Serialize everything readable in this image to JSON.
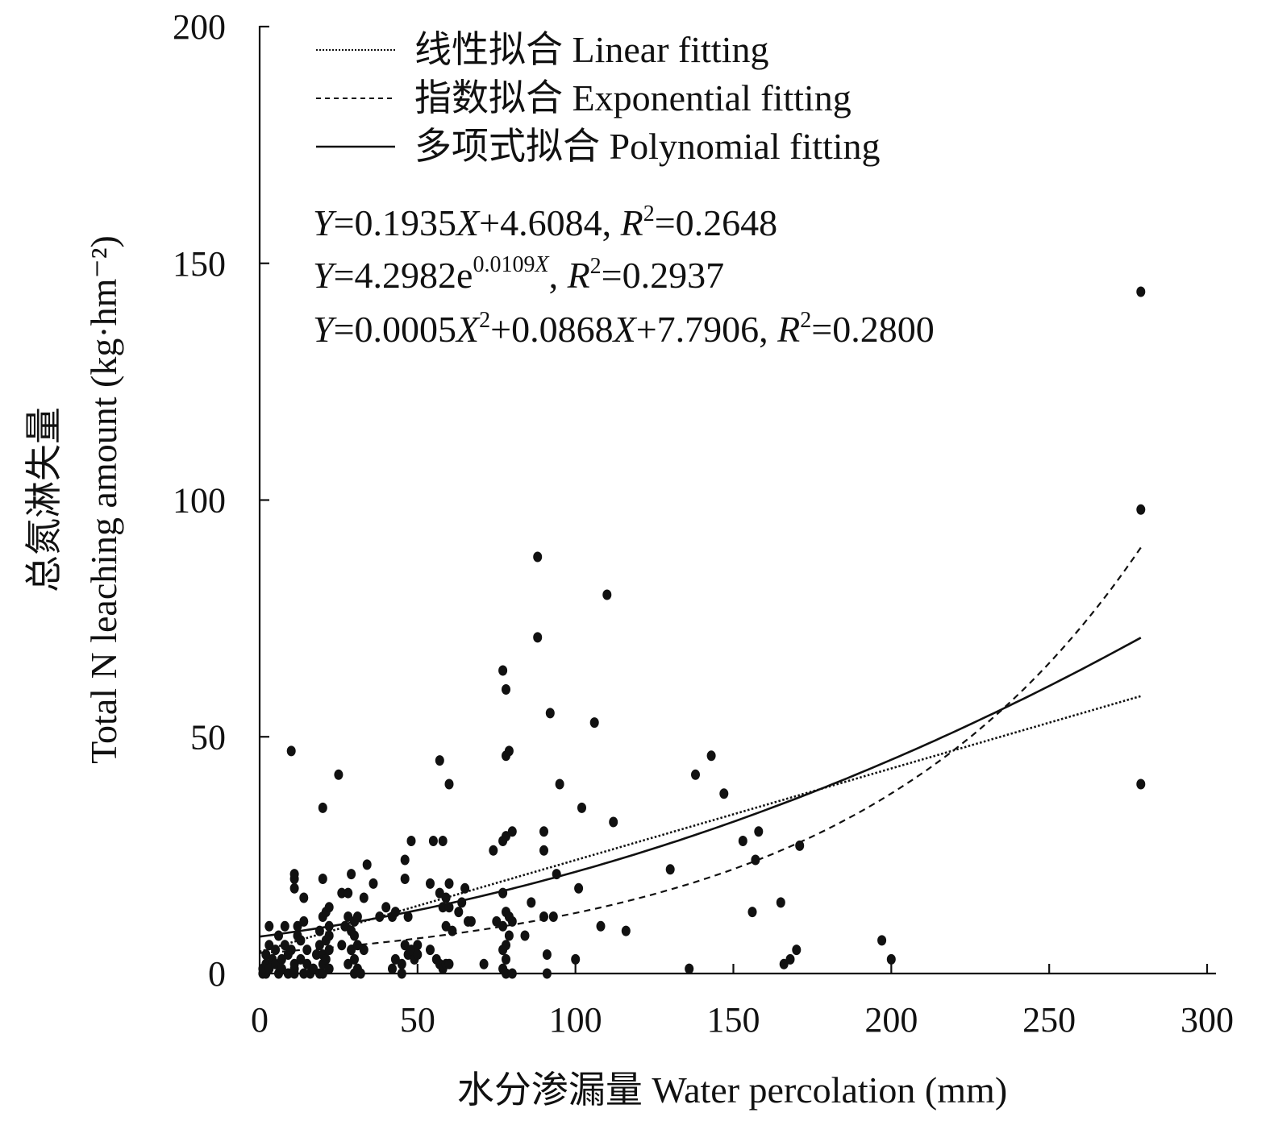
{
  "chart_data": {
    "type": "scatter",
    "xlabel": "水分渗漏量 Water percolation (mm)",
    "ylabel_line1": "总氮淋失量",
    "ylabel_line2": "Total N leaching amount (kg·hm⁻²)",
    "xlim": [
      0,
      300
    ],
    "ylim": [
      0,
      200
    ],
    "x_ticks": [
      "0",
      "50",
      "100",
      "150",
      "200",
      "250",
      "300"
    ],
    "y_ticks": [
      "0",
      "50",
      "100",
      "150",
      "200"
    ],
    "grid": false,
    "legend_position": "top-left",
    "legend": [
      {
        "label": "线性拟合 Linear fitting",
        "style": "dotted"
      },
      {
        "label": "指数拟合 Exponential fitting",
        "style": "dashed"
      },
      {
        "label": "多项式拟合 Polynomial fitting",
        "style": "solid"
      }
    ],
    "equations": {
      "linear": {
        "Y": "Y",
        "eq": "=0.1935",
        "X": "X",
        "rest": "+4.6084, ",
        "R": "R",
        "sup": "2",
        "r2": "=0.2648"
      },
      "exponential": {
        "Y": "Y",
        "eq": "=4.2982e",
        "exp": "0.0109",
        "X": "X",
        "comma": ", ",
        "R": "R",
        "sup": "2",
        "r2": "=0.2937"
      },
      "polynomial": {
        "Y": "Y",
        "eq": "=0.0005",
        "X": "X",
        "sup2": "2",
        "mid": "+0.0868",
        "X2": "X",
        "rest": "+7.7906, ",
        "R": "R",
        "sup": "2",
        "r2": "=0.2800"
      }
    },
    "fits": {
      "linear": {
        "slope": 0.1935,
        "intercept": 4.6084,
        "x_range": [
          0,
          279
        ]
      },
      "exponential": {
        "a": 4.2982,
        "b": 0.0109,
        "x_range": [
          0,
          279
        ]
      },
      "polynomial": {
        "a": 0.0005,
        "b": 0.0868,
        "c": 7.7906,
        "x_range": [
          0,
          279
        ]
      }
    },
    "series": [
      {
        "points": [
          [
            1,
            0
          ],
          [
            2,
            0
          ],
          [
            1,
            1
          ],
          [
            2,
            2
          ],
          [
            3,
            1
          ],
          [
            2,
            4
          ],
          [
            3,
            6
          ],
          [
            3,
            10
          ],
          [
            4,
            3
          ],
          [
            5,
            2
          ],
          [
            5,
            5
          ],
          [
            6,
            0
          ],
          [
            6,
            8
          ],
          [
            7,
            3
          ],
          [
            7,
            1
          ],
          [
            8,
            6
          ],
          [
            8,
            10
          ],
          [
            9,
            0
          ],
          [
            9,
            4
          ],
          [
            10,
            5
          ],
          [
            10,
            47
          ],
          [
            11,
            0
          ],
          [
            11,
            1
          ],
          [
            11,
            2
          ],
          [
            11,
            18
          ],
          [
            11,
            20
          ],
          [
            11,
            21
          ],
          [
            12,
            8
          ],
          [
            12,
            10
          ],
          [
            13,
            7
          ],
          [
            13,
            3
          ],
          [
            14,
            0
          ],
          [
            14,
            11
          ],
          [
            14,
            16
          ],
          [
            15,
            5
          ],
          [
            15,
            2
          ],
          [
            16,
            0
          ],
          [
            17,
            1
          ],
          [
            18,
            4
          ],
          [
            19,
            0
          ],
          [
            19,
            6
          ],
          [
            19,
            9
          ],
          [
            20,
            0
          ],
          [
            20,
            2
          ],
          [
            20,
            4
          ],
          [
            20,
            12
          ],
          [
            20,
            20
          ],
          [
            20,
            35
          ],
          [
            21,
            3
          ],
          [
            21,
            7
          ],
          [
            21,
            13
          ],
          [
            22,
            1
          ],
          [
            22,
            5
          ],
          [
            22,
            8
          ],
          [
            22,
            10
          ],
          [
            22,
            14
          ],
          [
            25,
            42
          ],
          [
            26,
            6
          ],
          [
            26,
            17
          ],
          [
            27,
            10
          ],
          [
            28,
            2
          ],
          [
            28,
            12
          ],
          [
            28,
            17
          ],
          [
            29,
            5
          ],
          [
            29,
            21
          ],
          [
            29,
            9
          ],
          [
            30,
            0
          ],
          [
            30,
            3
          ],
          [
            30,
            8
          ],
          [
            30,
            11
          ],
          [
            31,
            1
          ],
          [
            31,
            6
          ],
          [
            31,
            12
          ],
          [
            32,
            0
          ],
          [
            33,
            5
          ],
          [
            33,
            16
          ],
          [
            34,
            23
          ],
          [
            36,
            19
          ],
          [
            38,
            12
          ],
          [
            40,
            14
          ],
          [
            42,
            1
          ],
          [
            42,
            12
          ],
          [
            43,
            3
          ],
          [
            43,
            13
          ],
          [
            45,
            0
          ],
          [
            45,
            2
          ],
          [
            46,
            6
          ],
          [
            46,
            20
          ],
          [
            46,
            24
          ],
          [
            47,
            4
          ],
          [
            47,
            12
          ],
          [
            48,
            5
          ],
          [
            48,
            28
          ],
          [
            49,
            3
          ],
          [
            50,
            6
          ],
          [
            50,
            4
          ],
          [
            54,
            5
          ],
          [
            54,
            19
          ],
          [
            55,
            28
          ],
          [
            56,
            3
          ],
          [
            57,
            2
          ],
          [
            57,
            45
          ],
          [
            57,
            17
          ],
          [
            58,
            14
          ],
          [
            58,
            28
          ],
          [
            58,
            1
          ],
          [
            59,
            2
          ],
          [
            59,
            10
          ],
          [
            59,
            16
          ],
          [
            60,
            2
          ],
          [
            60,
            14
          ],
          [
            60,
            19
          ],
          [
            60,
            40
          ],
          [
            61,
            9
          ],
          [
            63,
            13
          ],
          [
            64,
            15
          ],
          [
            65,
            18
          ],
          [
            66,
            11
          ],
          [
            67,
            11
          ],
          [
            71,
            2
          ],
          [
            74,
            26
          ],
          [
            75,
            11
          ],
          [
            77,
            1
          ],
          [
            77,
            5
          ],
          [
            77,
            10
          ],
          [
            77,
            17
          ],
          [
            77,
            28
          ],
          [
            77,
            64
          ],
          [
            78,
            0
          ],
          [
            78,
            3
          ],
          [
            78,
            6
          ],
          [
            78,
            13
          ],
          [
            78,
            29
          ],
          [
            78,
            46
          ],
          [
            78,
            60
          ],
          [
            79,
            8
          ],
          [
            79,
            12
          ],
          [
            79,
            47
          ],
          [
            80,
            0
          ],
          [
            80,
            11
          ],
          [
            80,
            30
          ],
          [
            84,
            8
          ],
          [
            86,
            15
          ],
          [
            88,
            71
          ],
          [
            88,
            88
          ],
          [
            90,
            26
          ],
          [
            90,
            30
          ],
          [
            90,
            12
          ],
          [
            91,
            0
          ],
          [
            91,
            4
          ],
          [
            92,
            55
          ],
          [
            93,
            12
          ],
          [
            94,
            21
          ],
          [
            95,
            40
          ],
          [
            100,
            3
          ],
          [
            101,
            18
          ],
          [
            102,
            35
          ],
          [
            106,
            53
          ],
          [
            108,
            10
          ],
          [
            110,
            80
          ],
          [
            112,
            32
          ],
          [
            116,
            9
          ],
          [
            130,
            22
          ],
          [
            136,
            1
          ],
          [
            138,
            42
          ],
          [
            143,
            46
          ],
          [
            147,
            38
          ],
          [
            153,
            28
          ],
          [
            156,
            13
          ],
          [
            157,
            24
          ],
          [
            158,
            30
          ],
          [
            165,
            15
          ],
          [
            166,
            2
          ],
          [
            168,
            3
          ],
          [
            170,
            5
          ],
          [
            171,
            27
          ],
          [
            197,
            7
          ],
          [
            200,
            3
          ],
          [
            279,
            40
          ],
          [
            279,
            98
          ],
          [
            279,
            144
          ]
        ]
      }
    ]
  }
}
